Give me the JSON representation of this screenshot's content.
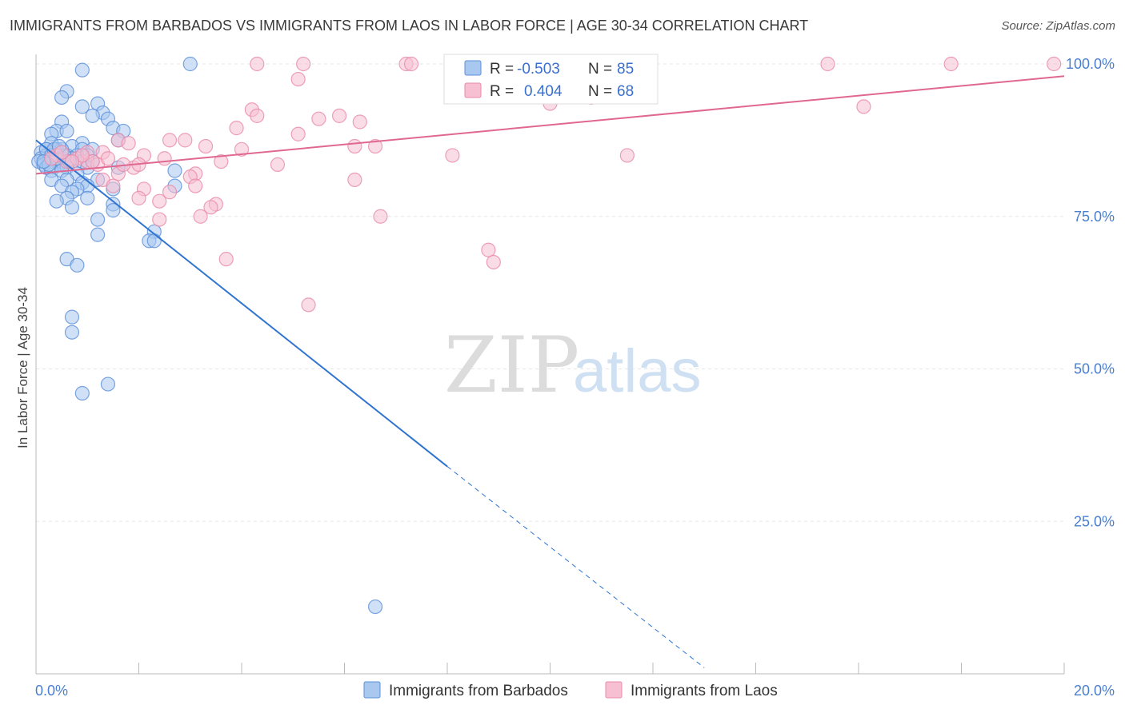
{
  "title": "IMMIGRANTS FROM BARBADOS VS IMMIGRANTS FROM LAOS IN LABOR FORCE | AGE 30-34 CORRELATION CHART",
  "source": "Source: ZipAtlas.com",
  "watermark": {
    "zip": "ZIP",
    "atlas": "atlas"
  },
  "colors": {
    "barbados_fill": "#a9c8f0",
    "barbados_stroke": "#5b8fd8",
    "barbados_line": "#2f74d0",
    "laos_fill": "#f6c0d2",
    "laos_stroke": "#e88aa8",
    "laos_line": "#e06890",
    "grid": "#e6e6e6",
    "tick_text": "#4a7fd0"
  },
  "legend": {
    "r_label": "R =",
    "n_label": "N =",
    "barbados": {
      "r": "-0.503",
      "n": "85"
    },
    "laos": {
      "r": "0.404",
      "n": "68"
    }
  },
  "chart_data": {
    "type": "scatter",
    "title": "IMMIGRANTS FROM BARBADOS VS IMMIGRANTS FROM LAOS IN LABOR FORCE | AGE 30-34 CORRELATION CHART",
    "xlabel": "",
    "ylabel": "In Labor Force | Age 30-34",
    "xlim": [
      0,
      20
    ],
    "ylim": [
      0,
      100
    ],
    "x_ticks": [
      "0.0%",
      "20.0%"
    ],
    "y_ticks": [
      {
        "value": 25,
        "label": "25.0%"
      },
      {
        "value": 50,
        "label": "50.0%"
      },
      {
        "value": 75,
        "label": "75.0%"
      },
      {
        "value": 100,
        "label": "100.0%"
      }
    ],
    "legend_entries": [
      "Immigrants from Barbados",
      "Immigrants from Laos"
    ],
    "series": [
      {
        "name": "Immigrants from Barbados",
        "r": -0.503,
        "n": 85,
        "trend": {
          "x0": 0,
          "y0": 87.5,
          "x1": 8.0,
          "y1": 34.0,
          "dash_x1": 13.0,
          "dash_y1": 1.0
        },
        "points": [
          [
            0.9,
            99
          ],
          [
            3.0,
            100
          ],
          [
            0.6,
            95.5
          ],
          [
            0.5,
            94.5
          ],
          [
            0.9,
            93
          ],
          [
            1.2,
            93.5
          ],
          [
            1.3,
            92
          ],
          [
            1.1,
            91.5
          ],
          [
            1.4,
            91
          ],
          [
            0.5,
            90.5
          ],
          [
            1.5,
            89.5
          ],
          [
            1.7,
            89
          ],
          [
            0.4,
            89
          ],
          [
            0.6,
            89
          ],
          [
            0.3,
            88.5
          ],
          [
            1.6,
            87.5
          ],
          [
            0.3,
            87
          ],
          [
            0.9,
            87
          ],
          [
            0.7,
            86.5
          ],
          [
            0.5,
            86
          ],
          [
            0.2,
            86
          ],
          [
            0.4,
            86
          ],
          [
            0.9,
            86
          ],
          [
            1.1,
            86
          ],
          [
            0.1,
            85.5
          ],
          [
            0.3,
            85.5
          ],
          [
            0.6,
            85
          ],
          [
            0.8,
            85
          ],
          [
            1.0,
            85
          ],
          [
            0.2,
            85
          ],
          [
            0.1,
            84.5
          ],
          [
            0.4,
            84.5
          ],
          [
            0.7,
            84.5
          ],
          [
            0.05,
            84
          ],
          [
            0.3,
            84
          ],
          [
            0.5,
            84
          ],
          [
            0.9,
            84
          ],
          [
            1.1,
            84
          ],
          [
            0.15,
            83.5
          ],
          [
            0.45,
            83.5
          ],
          [
            0.2,
            83
          ],
          [
            0.6,
            83
          ],
          [
            1.0,
            83
          ],
          [
            1.6,
            83
          ],
          [
            0.3,
            82.5
          ],
          [
            0.5,
            82.5
          ],
          [
            0.8,
            82
          ],
          [
            2.7,
            82.5
          ],
          [
            0.3,
            81
          ],
          [
            0.6,
            81
          ],
          [
            1.2,
            81
          ],
          [
            0.9,
            80.5
          ],
          [
            0.5,
            80
          ],
          [
            1.0,
            80
          ],
          [
            0.8,
            79.5
          ],
          [
            1.5,
            79.5
          ],
          [
            0.7,
            79
          ],
          [
            2.7,
            80
          ],
          [
            0.6,
            78
          ],
          [
            1.0,
            78
          ],
          [
            0.4,
            77.5
          ],
          [
            1.5,
            77
          ],
          [
            0.7,
            76.5
          ],
          [
            1.5,
            76
          ],
          [
            1.2,
            74.5
          ],
          [
            2.3,
            72.5
          ],
          [
            1.2,
            72
          ],
          [
            2.2,
            71
          ],
          [
            2.3,
            71
          ],
          [
            0.6,
            68
          ],
          [
            0.8,
            67
          ],
          [
            0.7,
            58.5
          ],
          [
            0.7,
            56
          ],
          [
            0.9,
            46
          ],
          [
            1.4,
            47.5
          ],
          [
            6.6,
            11
          ],
          [
            0.2,
            86
          ],
          [
            0.3,
            85
          ],
          [
            0.4,
            84.5
          ],
          [
            0.25,
            83.5
          ],
          [
            0.15,
            84
          ],
          [
            0.35,
            86
          ],
          [
            0.55,
            85
          ],
          [
            0.65,
            84
          ],
          [
            0.45,
            86.5
          ]
        ]
      },
      {
        "name": "Immigrants from Laos",
        "r": 0.404,
        "n": 68,
        "trend": {
          "x0": 0,
          "y0": 82.0,
          "x1": 20.0,
          "y1": 98.0
        },
        "points": [
          [
            4.3,
            100
          ],
          [
            5.2,
            100
          ],
          [
            7.2,
            100
          ],
          [
            7.3,
            100
          ],
          [
            15.4,
            100
          ],
          [
            17.8,
            100
          ],
          [
            19.8,
            100
          ],
          [
            5.1,
            97.5
          ],
          [
            10.0,
            93.5
          ],
          [
            10.8,
            94.5
          ],
          [
            16.1,
            93
          ],
          [
            4.2,
            92.5
          ],
          [
            4.3,
            91.5
          ],
          [
            5.5,
            91
          ],
          [
            5.9,
            91.5
          ],
          [
            6.3,
            90.5
          ],
          [
            3.9,
            89.5
          ],
          [
            5.1,
            88.5
          ],
          [
            1.6,
            87.5
          ],
          [
            1.8,
            87
          ],
          [
            2.6,
            87.5
          ],
          [
            2.9,
            87.5
          ],
          [
            3.3,
            86.5
          ],
          [
            4.0,
            86
          ],
          [
            6.2,
            86.5
          ],
          [
            6.6,
            86.5
          ],
          [
            8.1,
            85
          ],
          [
            11.5,
            85
          ],
          [
            1.3,
            85.5
          ],
          [
            2.1,
            85
          ],
          [
            2.5,
            84.5
          ],
          [
            3.6,
            84
          ],
          [
            4.7,
            83.5
          ],
          [
            1.0,
            84
          ],
          [
            1.2,
            83.5
          ],
          [
            1.9,
            83
          ],
          [
            2.0,
            83.5
          ],
          [
            1.6,
            82
          ],
          [
            3.1,
            82
          ],
          [
            3.0,
            81.5
          ],
          [
            1.3,
            81
          ],
          [
            6.2,
            81
          ],
          [
            1.5,
            80
          ],
          [
            2.1,
            79.5
          ],
          [
            2.6,
            79
          ],
          [
            3.1,
            80
          ],
          [
            2.0,
            78
          ],
          [
            2.4,
            77.5
          ],
          [
            3.5,
            77
          ],
          [
            3.4,
            76.5
          ],
          [
            3.2,
            75
          ],
          [
            2.4,
            74.5
          ],
          [
            6.7,
            75
          ],
          [
            8.8,
            69.5
          ],
          [
            8.9,
            67.5
          ],
          [
            3.7,
            68
          ],
          [
            5.3,
            60.5
          ],
          [
            0.4,
            85
          ],
          [
            0.6,
            84
          ],
          [
            0.8,
            84.5
          ],
          [
            1.0,
            85.5
          ],
          [
            1.1,
            84
          ],
          [
            0.3,
            84.5
          ],
          [
            0.5,
            85.5
          ],
          [
            1.4,
            84.5
          ],
          [
            0.9,
            85
          ],
          [
            1.7,
            83.5
          ],
          [
            0.7,
            84
          ]
        ]
      }
    ]
  }
}
